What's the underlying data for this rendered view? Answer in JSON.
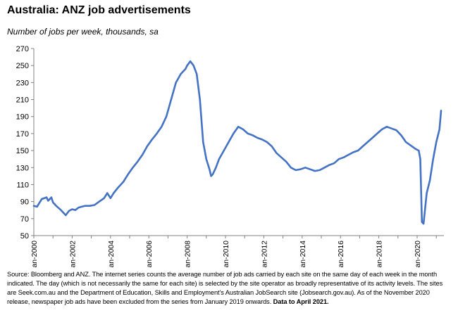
{
  "title": "Australia: ANZ job advertisements",
  "subtitle": "Number of jobs per week, thousands, sa",
  "footnote": {
    "text": "Source: Bloomberg and ANZ.  The internet series counts the average number of job ads carried by each site on the same day of each week in the month indicated. The day (which is not necessarily the same for each site) is selected by the site operator as broadly representative of its activity levels. The sites are Seek.com.au and the Department of Education, Skills and Employment's Australian JobSearch site (Jobsearch.gov.au). As of the November 2020 release, newspaper job ads have been excluded from the series from January 2019 onwards.",
    "bold": "Data to April 2021."
  },
  "colors": {
    "line": "#4472c4",
    "axis": "#808080",
    "background": "#ffffff"
  },
  "chart_data": {
    "type": "line",
    "title": "Australia: ANZ job advertisements",
    "ylabel": "Number of jobs per week, thousands, sa",
    "xlabel": "",
    "ylim": [
      50,
      270
    ],
    "xlim": [
      "2000-01",
      "2021-04"
    ],
    "yticks": [
      50,
      70,
      90,
      110,
      130,
      150,
      170,
      190,
      210,
      230,
      250,
      270
    ],
    "xticks": [
      "Jan-2000",
      "Jan-2002",
      "Jan-2004",
      "Jan-2006",
      "Jan-2008",
      "Jan-2010",
      "Jan-2012",
      "Jan-2014",
      "Jan-2016",
      "Jan-2018",
      "Jan-2020"
    ],
    "grid": false,
    "legend": "none",
    "series": [
      {
        "x": [
          "2000-01",
          "2000-03",
          "2000-06",
          "2000-09",
          "2000-10",
          "2000-12",
          "2001-01",
          "2001-03",
          "2001-06",
          "2001-09",
          "2001-11",
          "2002-01",
          "2002-03",
          "2002-05",
          "2002-07",
          "2002-09",
          "2002-12",
          "2003-03",
          "2003-06",
          "2003-09",
          "2003-11",
          "2004-01",
          "2004-03",
          "2004-06",
          "2004-09",
          "2004-12",
          "2005-03",
          "2005-06",
          "2005-09",
          "2005-12",
          "2006-03",
          "2006-06",
          "2006-09",
          "2006-12",
          "2007-03",
          "2007-06",
          "2007-09",
          "2007-12",
          "2008-01",
          "2008-03",
          "2008-05",
          "2008-07",
          "2008-09",
          "2008-11",
          "2009-01",
          "2009-03",
          "2009-04",
          "2009-05",
          "2009-07",
          "2009-09",
          "2009-12",
          "2010-03",
          "2010-06",
          "2010-09",
          "2010-12",
          "2011-03",
          "2011-06",
          "2011-09",
          "2011-12",
          "2012-03",
          "2012-06",
          "2012-09",
          "2012-12",
          "2013-03",
          "2013-06",
          "2013-09",
          "2013-12",
          "2014-03",
          "2014-06",
          "2014-09",
          "2014-12",
          "2015-03",
          "2015-06",
          "2015-09",
          "2015-12",
          "2016-03",
          "2016-06",
          "2016-09",
          "2016-12",
          "2017-03",
          "2017-06",
          "2017-09",
          "2017-12",
          "2018-03",
          "2018-06",
          "2018-09",
          "2018-12",
          "2019-03",
          "2019-06",
          "2019-09",
          "2019-12",
          "2020-02",
          "2020-03",
          "2020-04",
          "2020-05",
          "2020-07",
          "2020-09",
          "2020-11",
          "2021-01",
          "2021-03",
          "2021-04"
        ],
        "values": [
          85,
          84,
          93,
          95,
          91,
          95,
          89,
          85,
          80,
          74,
          79,
          81,
          80,
          83,
          84,
          85,
          85,
          86,
          90,
          94,
          100,
          94,
          100,
          107,
          113,
          122,
          130,
          137,
          145,
          155,
          163,
          170,
          178,
          190,
          210,
          230,
          240,
          246,
          250,
          255,
          250,
          240,
          210,
          160,
          140,
          128,
          120,
          122,
          130,
          140,
          150,
          160,
          170,
          178,
          175,
          170,
          168,
          165,
          163,
          160,
          155,
          147,
          142,
          137,
          130,
          127,
          128,
          130,
          128,
          126,
          127,
          130,
          133,
          135,
          140,
          142,
          145,
          148,
          150,
          155,
          160,
          165,
          170,
          175,
          178,
          176,
          174,
          168,
          160,
          156,
          152,
          150,
          140,
          66,
          64,
          100,
          115,
          140,
          160,
          175,
          197
        ]
      }
    ]
  }
}
